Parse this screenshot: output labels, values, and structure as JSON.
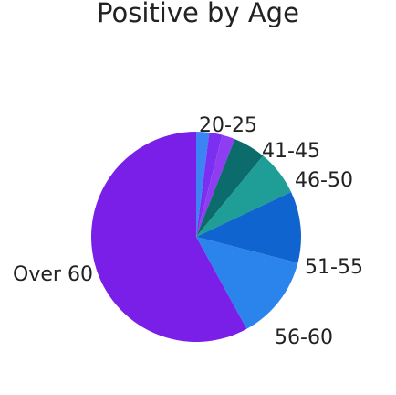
{
  "chart_data": {
    "type": "pie",
    "title": "Positive by Age",
    "slices": [
      {
        "label": "20-25",
        "value": 2,
        "color": "#3c84f3"
      },
      {
        "label": "",
        "value": 2,
        "color": "#7b2ff0"
      },
      {
        "label": "",
        "value": 2,
        "color": "#8f3df2"
      },
      {
        "label": "41-45",
        "value": 5,
        "color": "#0c6b6b"
      },
      {
        "label": "46-50",
        "value": 7,
        "color": "#1e9e97"
      },
      {
        "label": "51-55",
        "value": 11,
        "color": "#1064cf"
      },
      {
        "label": "56-60",
        "value": 13,
        "color": "#2b84ec"
      },
      {
        "label": "Over 60",
        "value": 58,
        "color": "#7a1fe8"
      }
    ]
  }
}
